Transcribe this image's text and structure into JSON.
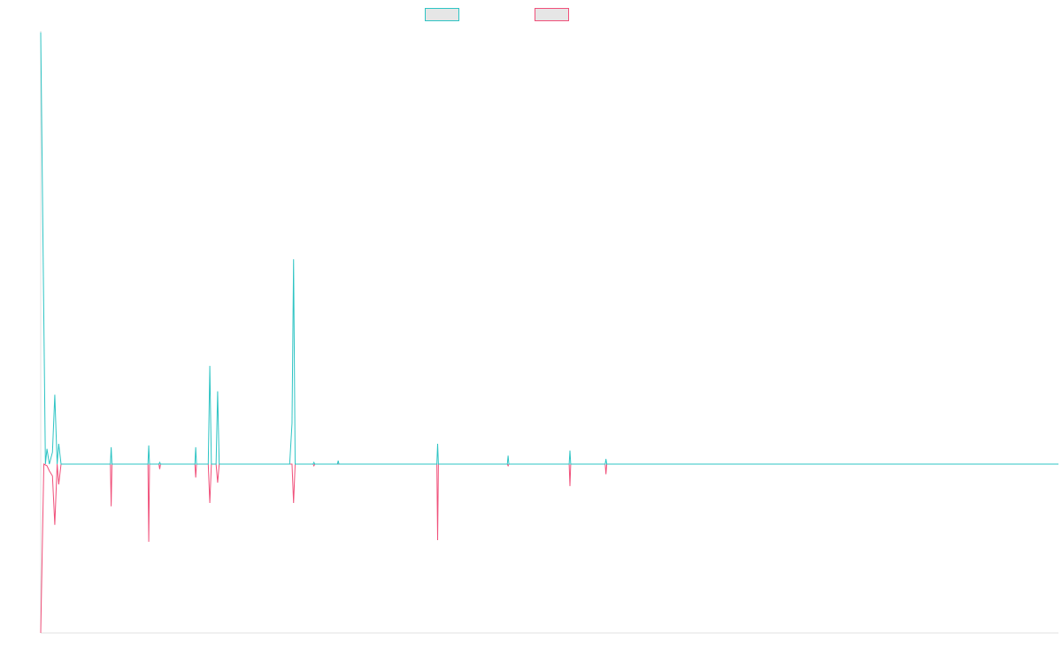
{
  "colors": {
    "series1": "#2ec4c4",
    "series2": "#f0507a",
    "axis": "#e0e0e0",
    "legend_fill": "#e6e6e6"
  },
  "legend": {
    "series1_label": "",
    "series2_label": ""
  },
  "chart_data": {
    "type": "line",
    "title": "",
    "xlabel": "",
    "ylabel": "",
    "grid": false,
    "legend_position": "top-center",
    "x_range": [
      0,
      130
    ],
    "ylim": [
      -100,
      255
    ],
    "series": [
      {
        "color": "#2ec4c4",
        "points": [
          [
            0,
            255
          ],
          [
            0.6,
            0
          ],
          [
            0.8,
            9
          ],
          [
            1.1,
            0
          ],
          [
            1.5,
            7
          ],
          [
            1.8,
            41
          ],
          [
            2.1,
            0
          ],
          [
            2.3,
            12
          ],
          [
            2.6,
            0
          ],
          [
            8.9,
            0
          ],
          [
            9,
            10
          ],
          [
            9.1,
            0
          ],
          [
            13.7,
            0
          ],
          [
            13.8,
            11
          ],
          [
            13.9,
            0
          ],
          [
            15.1,
            0
          ],
          [
            15.2,
            1
          ],
          [
            15.3,
            0
          ],
          [
            19.7,
            0
          ],
          [
            19.8,
            10
          ],
          [
            19.9,
            0
          ],
          [
            21.4,
            0
          ],
          [
            21.6,
            58
          ],
          [
            21.8,
            0
          ],
          [
            22.4,
            0
          ],
          [
            22.6,
            43
          ],
          [
            22.8,
            0
          ],
          [
            31.8,
            0
          ],
          [
            32.1,
            24
          ],
          [
            32.3,
            121
          ],
          [
            32.5,
            0
          ],
          [
            34.8,
            0
          ],
          [
            34.9,
            1
          ],
          [
            35,
            0
          ],
          [
            37.9,
            0
          ],
          [
            38,
            2
          ],
          [
            38.1,
            0
          ],
          [
            50.6,
            0
          ],
          [
            50.7,
            12
          ],
          [
            50.8,
            0
          ],
          [
            59.6,
            0
          ],
          [
            59.7,
            5
          ],
          [
            59.8,
            0
          ],
          [
            67.5,
            0
          ],
          [
            67.6,
            8
          ],
          [
            67.7,
            0
          ],
          [
            72.1,
            0
          ],
          [
            72.2,
            3
          ],
          [
            72.3,
            0
          ],
          [
            130,
            0
          ]
        ]
      },
      {
        "color": "#f0507a",
        "points": [
          [
            0,
            -100
          ],
          [
            0.4,
            0
          ],
          [
            0.8,
            -1
          ],
          [
            1.1,
            -4
          ],
          [
            1.5,
            -7
          ],
          [
            1.8,
            -36
          ],
          [
            2.1,
            0
          ],
          [
            2.3,
            -12
          ],
          [
            2.6,
            0
          ],
          [
            8.9,
            0
          ],
          [
            9,
            -25
          ],
          [
            9.1,
            0
          ],
          [
            13.7,
            0
          ],
          [
            13.8,
            -46
          ],
          [
            13.9,
            0
          ],
          [
            15.1,
            0
          ],
          [
            15.2,
            -3
          ],
          [
            15.3,
            0
          ],
          [
            19.7,
            0
          ],
          [
            19.8,
            -8
          ],
          [
            19.9,
            0
          ],
          [
            21.4,
            0
          ],
          [
            21.6,
            -23
          ],
          [
            21.8,
            0
          ],
          [
            22.4,
            0
          ],
          [
            22.6,
            -11
          ],
          [
            22.8,
            0
          ],
          [
            32.1,
            0
          ],
          [
            32.3,
            -23
          ],
          [
            32.5,
            0
          ],
          [
            34.8,
            0
          ],
          [
            34.9,
            -1
          ],
          [
            35,
            0
          ],
          [
            50.6,
            0
          ],
          [
            50.7,
            -45
          ],
          [
            50.8,
            0
          ],
          [
            59.6,
            0
          ],
          [
            59.7,
            -1
          ],
          [
            59.8,
            0
          ],
          [
            67.5,
            0
          ],
          [
            67.6,
            -13
          ],
          [
            67.7,
            0
          ],
          [
            72.1,
            0
          ],
          [
            72.2,
            -6
          ],
          [
            72.3,
            0
          ],
          [
            130,
            0
          ]
        ]
      }
    ]
  }
}
